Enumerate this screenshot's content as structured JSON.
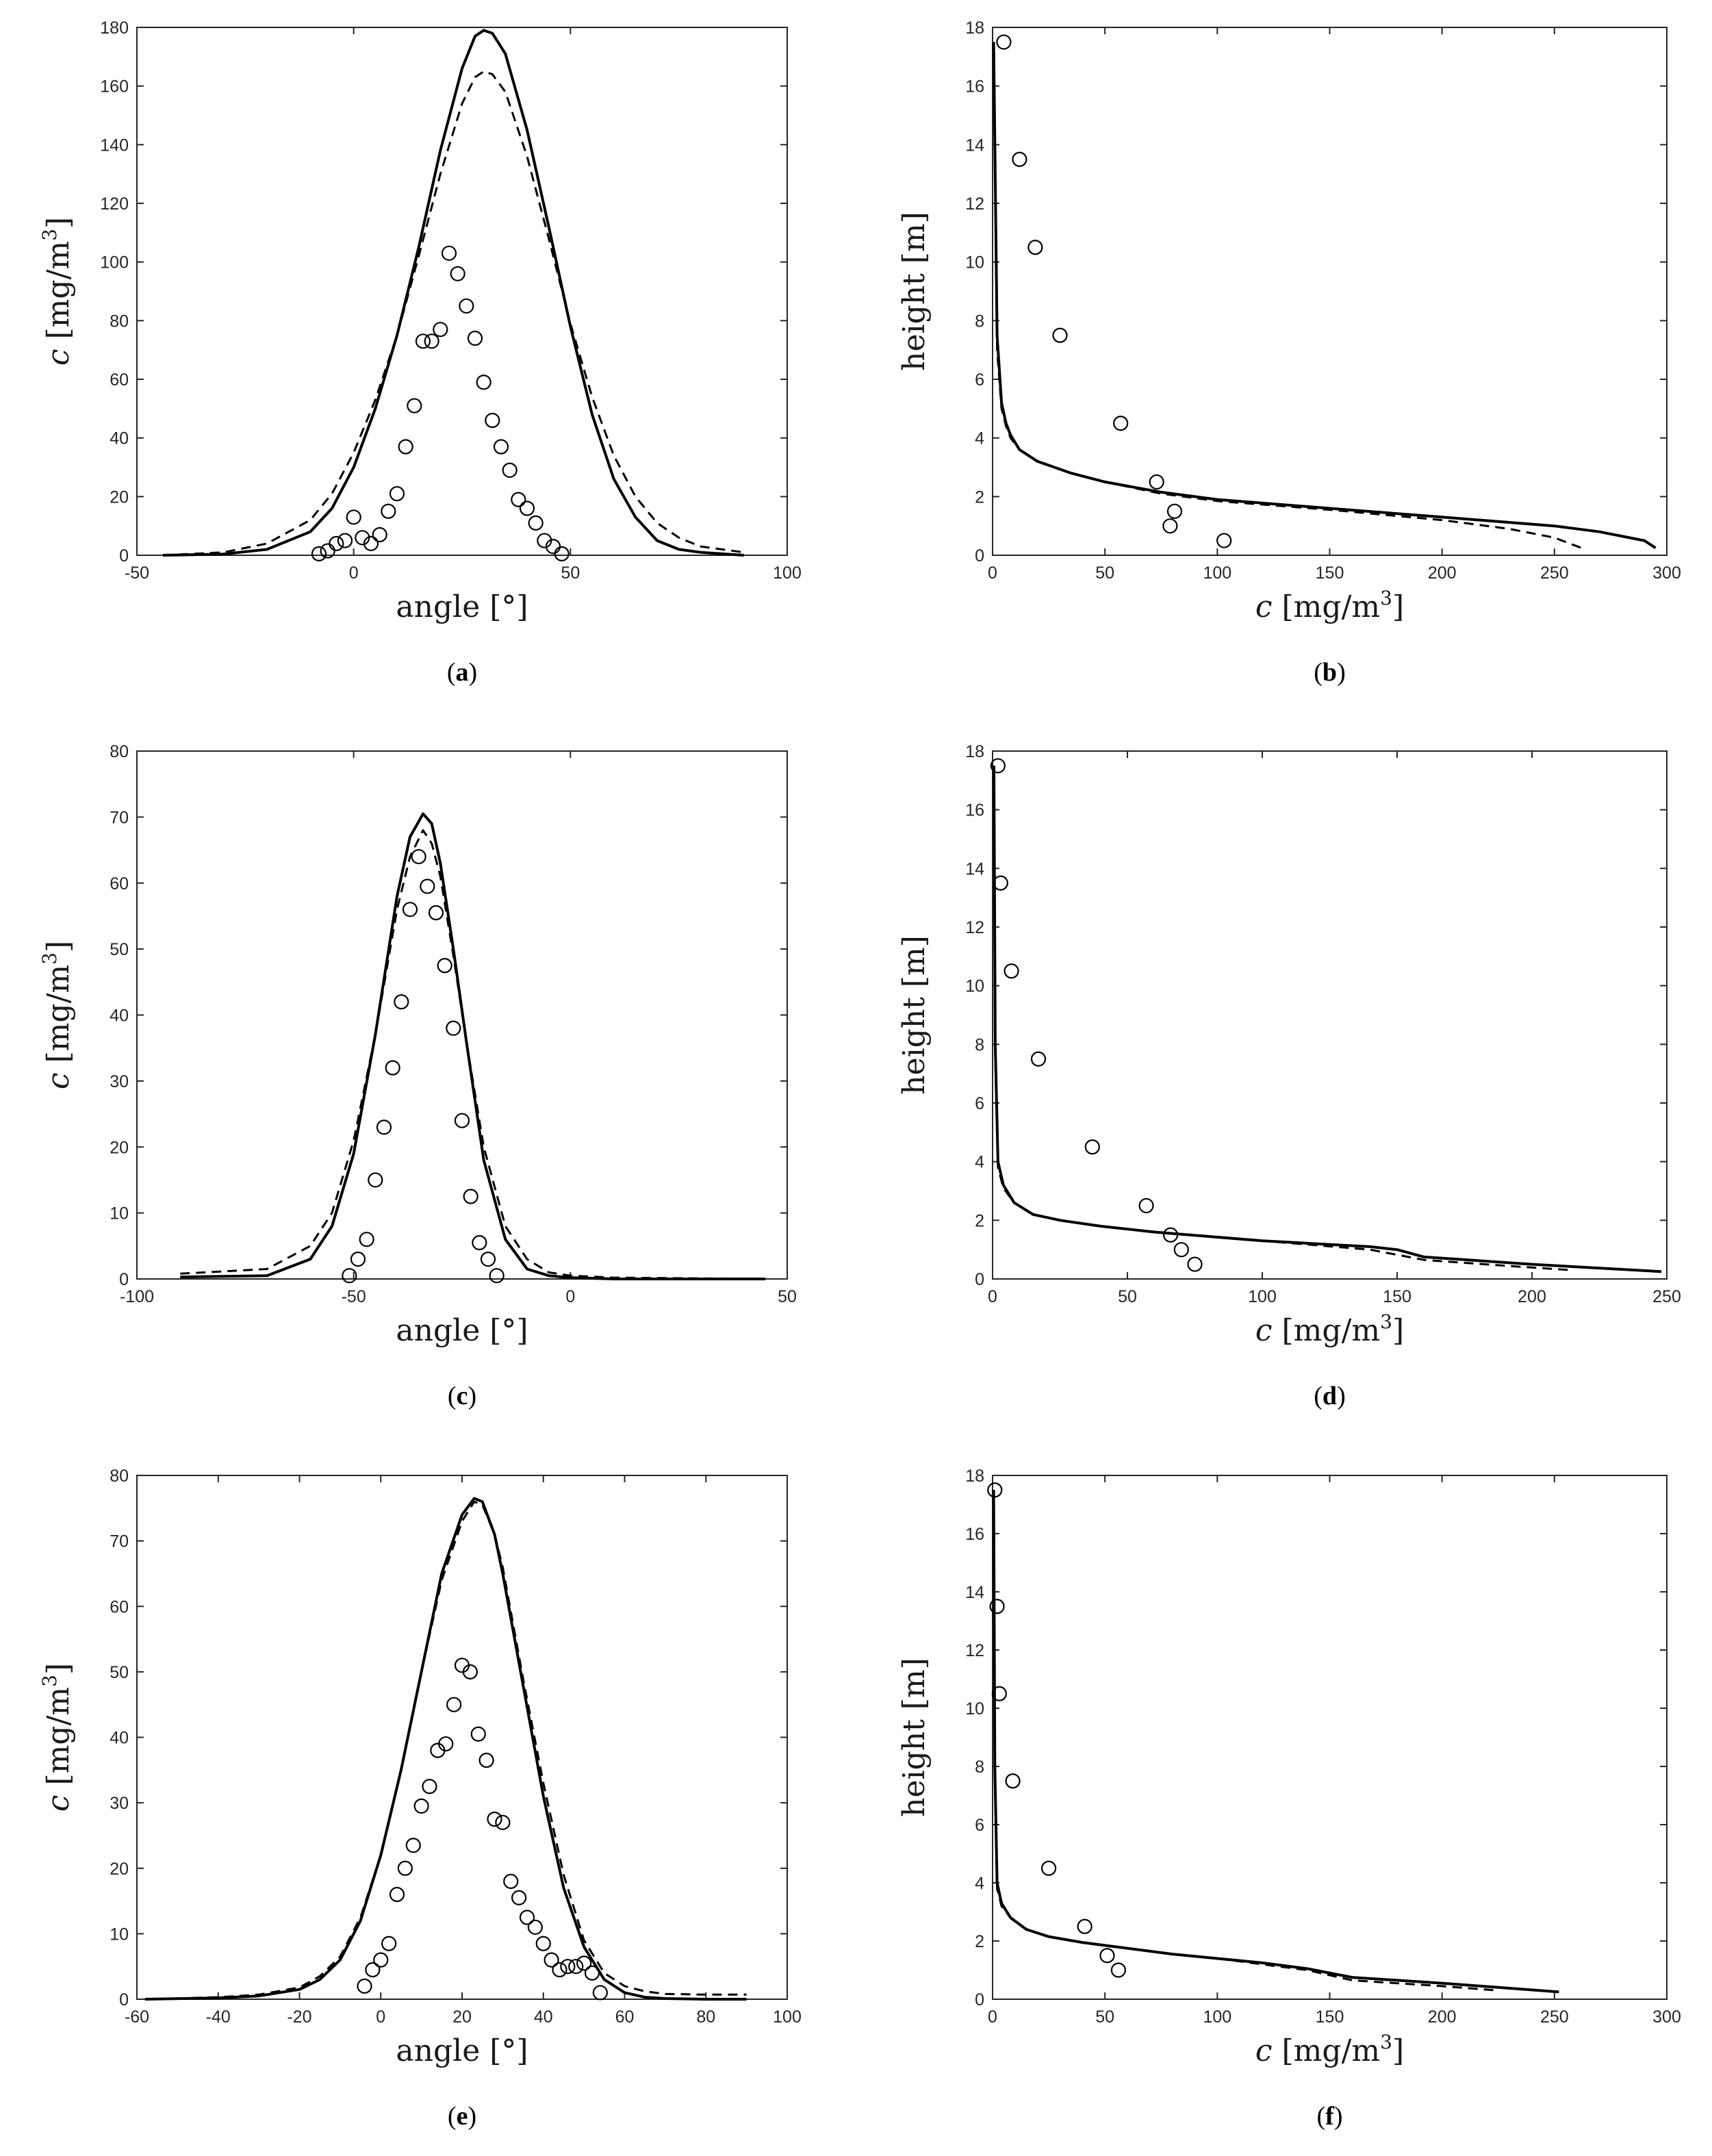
{
  "chart_data": [
    {
      "id": "a",
      "type": "line",
      "caption": "a",
      "xlabel": "angle [°]",
      "ylabel": "c [mg/m3]",
      "xlim": [
        -50,
        100
      ],
      "ylim": [
        0,
        180
      ],
      "xticks": [
        -50,
        0,
        50,
        100
      ],
      "yticks": [
        0,
        20,
        40,
        60,
        80,
        100,
        120,
        140,
        160,
        180
      ],
      "series": [
        {
          "style": "solid",
          "x": [
            -44,
            -30,
            -20,
            -10,
            -5,
            0,
            5,
            10,
            15,
            20,
            25,
            28,
            30,
            32,
            35,
            40,
            45,
            50,
            55,
            60,
            65,
            70,
            75,
            80,
            90
          ],
          "y": [
            0,
            0.4,
            2,
            8,
            16,
            30,
            50,
            75,
            105,
            138,
            166,
            177,
            179,
            178,
            171,
            145,
            112,
            78,
            48,
            26,
            13,
            5,
            2,
            1,
            0
          ]
        },
        {
          "style": "dashed",
          "x": [
            -44,
            -30,
            -20,
            -10,
            -5,
            0,
            5,
            10,
            15,
            20,
            25,
            28,
            30,
            32,
            35,
            40,
            45,
            50,
            55,
            60,
            65,
            70,
            75,
            80,
            90
          ],
          "y": [
            0,
            1,
            4,
            12,
            21,
            35,
            53,
            75,
            102,
            130,
            154,
            163,
            165,
            164,
            158,
            136,
            108,
            79,
            54,
            34,
            20,
            11,
            6,
            3,
            1
          ]
        },
        {
          "style": "markers",
          "x": [
            -8,
            -6,
            -4,
            -2,
            0,
            2,
            4,
            6,
            8,
            10,
            12,
            14,
            16,
            18,
            20,
            22,
            24,
            26,
            28,
            30,
            32,
            34,
            36,
            38,
            40,
            42,
            44,
            46,
            48
          ],
          "y": [
            0.5,
            1.5,
            4,
            5,
            13,
            6,
            4,
            7,
            15,
            21,
            37,
            51,
            73,
            73,
            77,
            103,
            96,
            85,
            74,
            59,
            46,
            37,
            29,
            19,
            16,
            11,
            5,
            3,
            0.5
          ]
        }
      ]
    },
    {
      "id": "b",
      "type": "line",
      "caption": "b",
      "xlabel": "c [mg/m3]",
      "ylabel": "height [m]",
      "xlim": [
        0,
        300
      ],
      "ylim": [
        0,
        18
      ],
      "xticks": [
        0,
        50,
        100,
        150,
        200,
        250,
        300
      ],
      "yticks": [
        0,
        2,
        4,
        6,
        8,
        10,
        12,
        14,
        16,
        18
      ],
      "series": [
        {
          "style": "solid",
          "x": [
            0.5,
            2,
            4,
            6,
            8,
            12,
            20,
            35,
            50,
            75,
            100,
            150,
            200,
            250,
            270,
            290,
            295
          ],
          "y": [
            17.5,
            7.5,
            5.2,
            4.5,
            4.1,
            3.6,
            3.2,
            2.8,
            2.5,
            2.15,
            1.9,
            1.6,
            1.3,
            1.0,
            0.8,
            0.5,
            0.25
          ]
        },
        {
          "style": "dashed",
          "x": [
            0.5,
            2,
            4,
            6,
            8,
            12,
            20,
            35,
            50,
            75,
            100,
            150,
            200,
            230,
            250,
            262
          ],
          "y": [
            17.5,
            7,
            5,
            4.4,
            4.0,
            3.6,
            3.2,
            2.8,
            2.5,
            2.1,
            1.85,
            1.55,
            1.2,
            0.9,
            0.6,
            0.25
          ]
        },
        {
          "style": "markers",
          "x": [
            5,
            12,
            19,
            30,
            57,
            73,
            79,
            81,
            103
          ],
          "y": [
            17.5,
            13.5,
            10.5,
            7.5,
            4.5,
            2.5,
            1.0,
            1.5,
            0.5
          ]
        }
      ]
    },
    {
      "id": "c",
      "type": "line",
      "caption": "c",
      "xlabel": "angle [°]",
      "ylabel": "c [mg/m3]",
      "xlim": [
        -100,
        50
      ],
      "ylim": [
        0,
        80
      ],
      "xticks": [
        -100,
        -50,
        0,
        50
      ],
      "yticks": [
        0,
        10,
        20,
        30,
        40,
        50,
        60,
        70,
        80
      ],
      "series": [
        {
          "style": "solid",
          "x": [
            -90,
            -70,
            -60,
            -55,
            -50,
            -45,
            -40,
            -37,
            -34,
            -32,
            -30,
            -27,
            -24,
            -20,
            -15,
            -10,
            -5,
            0,
            10,
            45
          ],
          "y": [
            0.3,
            0.5,
            3,
            8,
            19,
            37,
            58,
            67,
            70.5,
            69,
            63,
            50,
            36,
            18,
            6,
            1.5,
            0.5,
            0.2,
            0,
            0
          ]
        },
        {
          "style": "dashed",
          "x": [
            -90,
            -70,
            -60,
            -55,
            -50,
            -45,
            -40,
            -37,
            -34,
            -32,
            -30,
            -27,
            -24,
            -20,
            -15,
            -10,
            -5,
            0,
            10,
            45
          ],
          "y": [
            0.8,
            1.5,
            5,
            10,
            21,
            37,
            56,
            64,
            68,
            66,
            61,
            49,
            36,
            20,
            8,
            3,
            1,
            0.5,
            0.2,
            0
          ]
        },
        {
          "style": "markers",
          "x": [
            -51,
            -49,
            -47,
            -45,
            -43,
            -41,
            -39,
            -37,
            -35,
            -33,
            -31,
            -29,
            -27,
            -25,
            -23,
            -21,
            -19,
            -17
          ],
          "y": [
            0.5,
            3,
            6,
            15,
            23,
            32,
            42,
            56,
            64,
            59.5,
            55.5,
            47.5,
            38,
            24,
            12.5,
            5.5,
            3,
            0.5
          ]
        }
      ]
    },
    {
      "id": "d",
      "type": "line",
      "caption": "d",
      "xlabel": "c [mg/m3]",
      "ylabel": "height [m]",
      "xlim": [
        0,
        250
      ],
      "ylim": [
        0,
        18
      ],
      "xticks": [
        0,
        50,
        100,
        150,
        200,
        250
      ],
      "yticks": [
        0,
        2,
        4,
        6,
        8,
        10,
        12,
        14,
        16,
        18
      ],
      "series": [
        {
          "style": "solid",
          "x": [
            0.5,
            1,
            2,
            4,
            8,
            15,
            25,
            40,
            60,
            80,
            100,
            120,
            140,
            150,
            160,
            200,
            248
          ],
          "y": [
            17.5,
            8,
            4,
            3.2,
            2.6,
            2.2,
            2.0,
            1.8,
            1.6,
            1.45,
            1.3,
            1.2,
            1.1,
            1.0,
            0.75,
            0.5,
            0.25
          ]
        },
        {
          "style": "dashed",
          "x": [
            0.5,
            1,
            2,
            4,
            8,
            15,
            25,
            40,
            60,
            80,
            100,
            120,
            140,
            160,
            190,
            215
          ],
          "y": [
            17.5,
            7.5,
            3.8,
            3.1,
            2.6,
            2.2,
            2.0,
            1.8,
            1.6,
            1.45,
            1.3,
            1.15,
            1.0,
            0.65,
            0.45,
            0.3
          ]
        },
        {
          "style": "markers",
          "x": [
            2,
            3,
            7,
            17,
            37,
            57,
            66,
            70,
            75
          ],
          "y": [
            17.5,
            13.5,
            10.5,
            7.5,
            4.5,
            2.5,
            1.5,
            1.0,
            0.5
          ]
        }
      ]
    },
    {
      "id": "e",
      "type": "line",
      "caption": "e",
      "xlabel": "angle [°]",
      "ylabel": "c [mg/m3]",
      "xlim": [
        -60,
        100
      ],
      "ylim": [
        0,
        80
      ],
      "xticks": [
        -60,
        -40,
        -20,
        0,
        20,
        40,
        60,
        80,
        100
      ],
      "yticks": [
        0,
        10,
        20,
        30,
        40,
        50,
        60,
        70,
        80
      ],
      "series": [
        {
          "style": "solid",
          "x": [
            -58,
            -40,
            -30,
            -20,
            -15,
            -10,
            -5,
            0,
            5,
            10,
            15,
            20,
            23,
            25,
            28,
            30,
            35,
            40,
            45,
            50,
            55,
            60,
            65,
            70,
            80,
            90
          ],
          "y": [
            0,
            0.2,
            0.5,
            1.5,
            3,
            6,
            12,
            22,
            35,
            50,
            65,
            74,
            76.5,
            76,
            71,
            65,
            48,
            31,
            17,
            8,
            3,
            1,
            0.3,
            0.1,
            0,
            0
          ]
        },
        {
          "style": "dashed",
          "x": [
            -58,
            -40,
            -30,
            -20,
            -15,
            -10,
            -5,
            0,
            5,
            10,
            15,
            20,
            23,
            25,
            28,
            30,
            35,
            40,
            45,
            50,
            55,
            60,
            65,
            70,
            80,
            90
          ],
          "y": [
            0,
            0.3,
            0.7,
            1.8,
            3.5,
            6.5,
            12.5,
            22,
            35,
            50,
            64,
            73,
            76,
            75.5,
            71,
            66,
            49,
            33,
            19,
            9,
            4,
            2,
            1.2,
            0.8,
            0.7,
            0.7
          ]
        },
        {
          "style": "markers",
          "x": [
            -4,
            -2,
            0,
            2,
            4,
            6,
            8,
            10,
            12,
            14,
            16,
            18,
            20,
            22,
            24,
            26,
            28,
            30,
            32,
            34,
            36,
            38,
            40,
            42,
            44,
            46,
            48,
            50,
            52,
            54
          ],
          "y": [
            2,
            4.5,
            6,
            8.5,
            16,
            20,
            23.5,
            29.5,
            32.5,
            38,
            39,
            45,
            51,
            50,
            40.5,
            36.5,
            27.5,
            27,
            18,
            15.5,
            12.5,
            11,
            8.5,
            6,
            4.5,
            5,
            5,
            5.5,
            4,
            1
          ]
        }
      ]
    },
    {
      "id": "f",
      "type": "line",
      "caption": "f",
      "xlabel": "c [mg/m3]",
      "ylabel": "height [m]",
      "xlim": [
        0,
        300
      ],
      "ylim": [
        0,
        18
      ],
      "xticks": [
        0,
        50,
        100,
        150,
        200,
        250,
        300
      ],
      "yticks": [
        0,
        2,
        4,
        6,
        8,
        10,
        12,
        14,
        16,
        18
      ],
      "series": [
        {
          "style": "solid",
          "x": [
            0.5,
            1,
            2,
            4,
            8,
            15,
            25,
            40,
            60,
            80,
            100,
            120,
            140,
            160,
            200,
            252
          ],
          "y": [
            17.5,
            8,
            4,
            3.3,
            2.8,
            2.4,
            2.15,
            1.95,
            1.75,
            1.55,
            1.4,
            1.25,
            1.05,
            0.75,
            0.55,
            0.25
          ]
        },
        {
          "style": "dashed",
          "x": [
            0.5,
            1,
            2,
            4,
            8,
            15,
            25,
            40,
            60,
            80,
            100,
            120,
            140,
            160,
            200,
            225
          ],
          "y": [
            17.5,
            7.5,
            3.8,
            3.2,
            2.8,
            2.4,
            2.15,
            1.95,
            1.75,
            1.55,
            1.4,
            1.2,
            1.0,
            0.65,
            0.45,
            0.3
          ]
        },
        {
          "style": "markers",
          "x": [
            1,
            2,
            3,
            9,
            25,
            41,
            51,
            56
          ],
          "y": [
            17.5,
            13.5,
            10.5,
            7.5,
            4.5,
            2.5,
            1.5,
            1.0
          ]
        }
      ]
    }
  ]
}
